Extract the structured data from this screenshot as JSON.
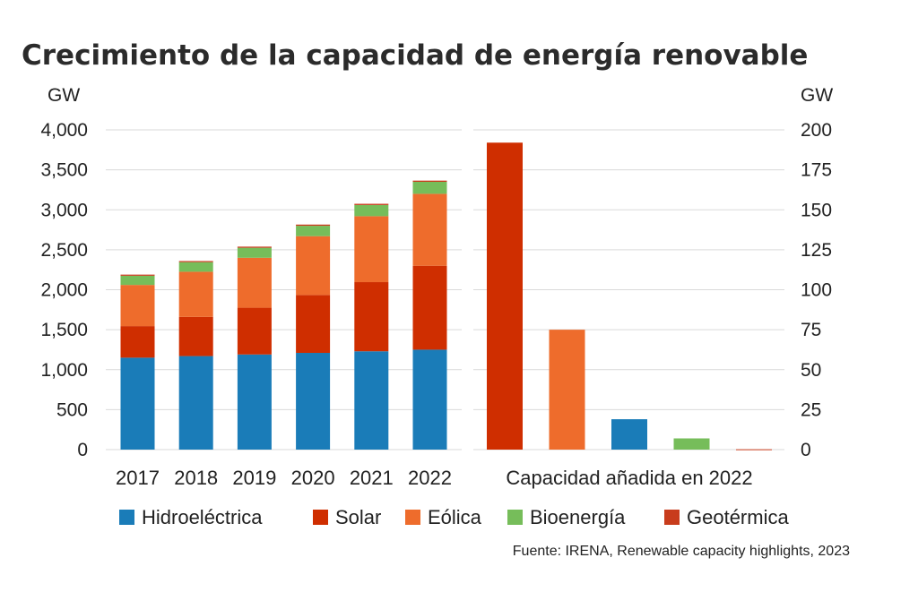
{
  "title": "Crecimiento de la capacidad de energía renovable",
  "source": "Fuente: IRENA, Renewable capacity highlights, 2023",
  "colors": {
    "Hidroeléctrica": "#1a7cb8",
    "Solar": "#cf2e00",
    "Eólica": "#ee6c2c",
    "Bioenergía": "#76bd5a",
    "Geotérmica": "#c83c1c",
    "grid": "#d9d9d9"
  },
  "chart_data": [
    {
      "type": "bar",
      "stacked": true,
      "ylabel": "GW",
      "ylim": [
        0,
        4000
      ],
      "yticks": [
        "0",
        "500",
        "1,000",
        "1,500",
        "2,000",
        "2,500",
        "3,000",
        "3,500",
        "4,000"
      ],
      "categories": [
        "2017",
        "2018",
        "2019",
        "2020",
        "2021",
        "2022"
      ],
      "series": [
        {
          "name": "Hidroeléctrica",
          "values": [
            1150,
            1170,
            1190,
            1210,
            1230,
            1250
          ]
        },
        {
          "name": "Solar",
          "values": [
            395,
            490,
            585,
            725,
            865,
            1050
          ]
        },
        {
          "name": "Eólica",
          "values": [
            515,
            565,
            625,
            735,
            825,
            900
          ]
        },
        {
          "name": "Bioenergía",
          "values": [
            115,
            120,
            125,
            130,
            140,
            150
          ]
        },
        {
          "name": "Geotérmica",
          "values": [
            14,
            14,
            14,
            15,
            15,
            15
          ]
        }
      ],
      "grid": true
    },
    {
      "type": "bar",
      "ylabel": "GW",
      "ylim": [
        0,
        200
      ],
      "yticks": [
        "0",
        "25",
        "50",
        "75",
        "100",
        "125",
        "150",
        "175",
        "200"
      ],
      "xlabel": "Capacidad añadida en 2022",
      "categories": [
        "Solar",
        "Eólica",
        "Hidroeléctrica",
        "Bioenergía",
        "Geotérmica"
      ],
      "values": [
        192,
        75,
        19,
        7,
        0.2
      ],
      "grid": true
    }
  ],
  "legend": [
    "Hidroeléctrica",
    "Solar",
    "Eólica",
    "Bioenergía",
    "Geotérmica"
  ]
}
